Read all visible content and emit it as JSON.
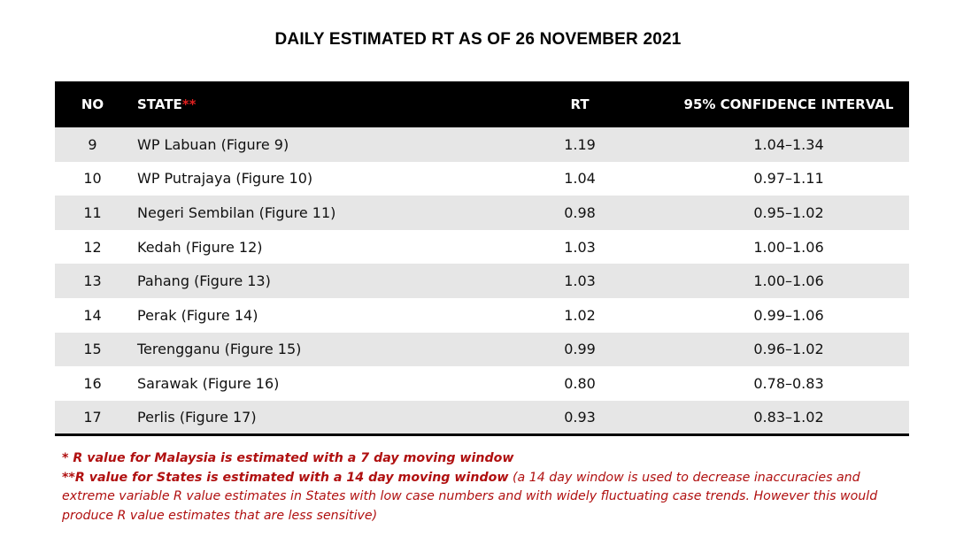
{
  "title": "DAILY ESTIMATED RT AS OF 26 NOVEMBER 2021",
  "table": {
    "headers": {
      "no": "NO",
      "state": "STATE",
      "state_marker": "**",
      "rt": "RT",
      "ci": "95% CONFIDENCE INTERVAL"
    },
    "rows": [
      {
        "no": "9",
        "state": "WP Labuan (Figure 9)",
        "rt": "1.19",
        "ci": "1.04–1.34"
      },
      {
        "no": "10",
        "state": "WP Putrajaya (Figure 10)",
        "rt": "1.04",
        "ci": "0.97–1.11"
      },
      {
        "no": "11",
        "state": "Negeri Sembilan (Figure 11)",
        "rt": "0.98",
        "ci": "0.95–1.02"
      },
      {
        "no": "12",
        "state": "Kedah (Figure 12)",
        "rt": "1.03",
        "ci": "1.00–1.06"
      },
      {
        "no": "13",
        "state": "Pahang (Figure 13)",
        "rt": "1.03",
        "ci": "1.00–1.06"
      },
      {
        "no": "14",
        "state": "Perak (Figure 14)",
        "rt": "1.02",
        "ci": "0.99–1.06"
      },
      {
        "no": "15",
        "state": "Terengganu (Figure 15)",
        "rt": "0.99",
        "ci": "0.96–1.02"
      },
      {
        "no": "16",
        "state": "Sarawak (Figure 16)",
        "rt": "0.80",
        "ci": "0.78–0.83"
      },
      {
        "no": "17",
        "state": "Perlis (Figure 17)",
        "rt": "0.93",
        "ci": "0.83–1.02"
      }
    ]
  },
  "notes": {
    "note1": "*  R value for Malaysia is estimated with a 7 day moving window",
    "note2_bold": "**R value for States is estimated with a 14 day moving window",
    "note2_rest": " (a 14 day window is used to decrease inaccuracies and extreme variable R value estimates in States with low case numbers and with widely fluctuating case trends. However this would produce R value estimates that are less sensitive)"
  },
  "colors": {
    "header_bg": "#000000",
    "header_text": "#ffffff",
    "stripe": "#e6e6e6",
    "marker": "#e02020",
    "note_text": "#b01010"
  }
}
